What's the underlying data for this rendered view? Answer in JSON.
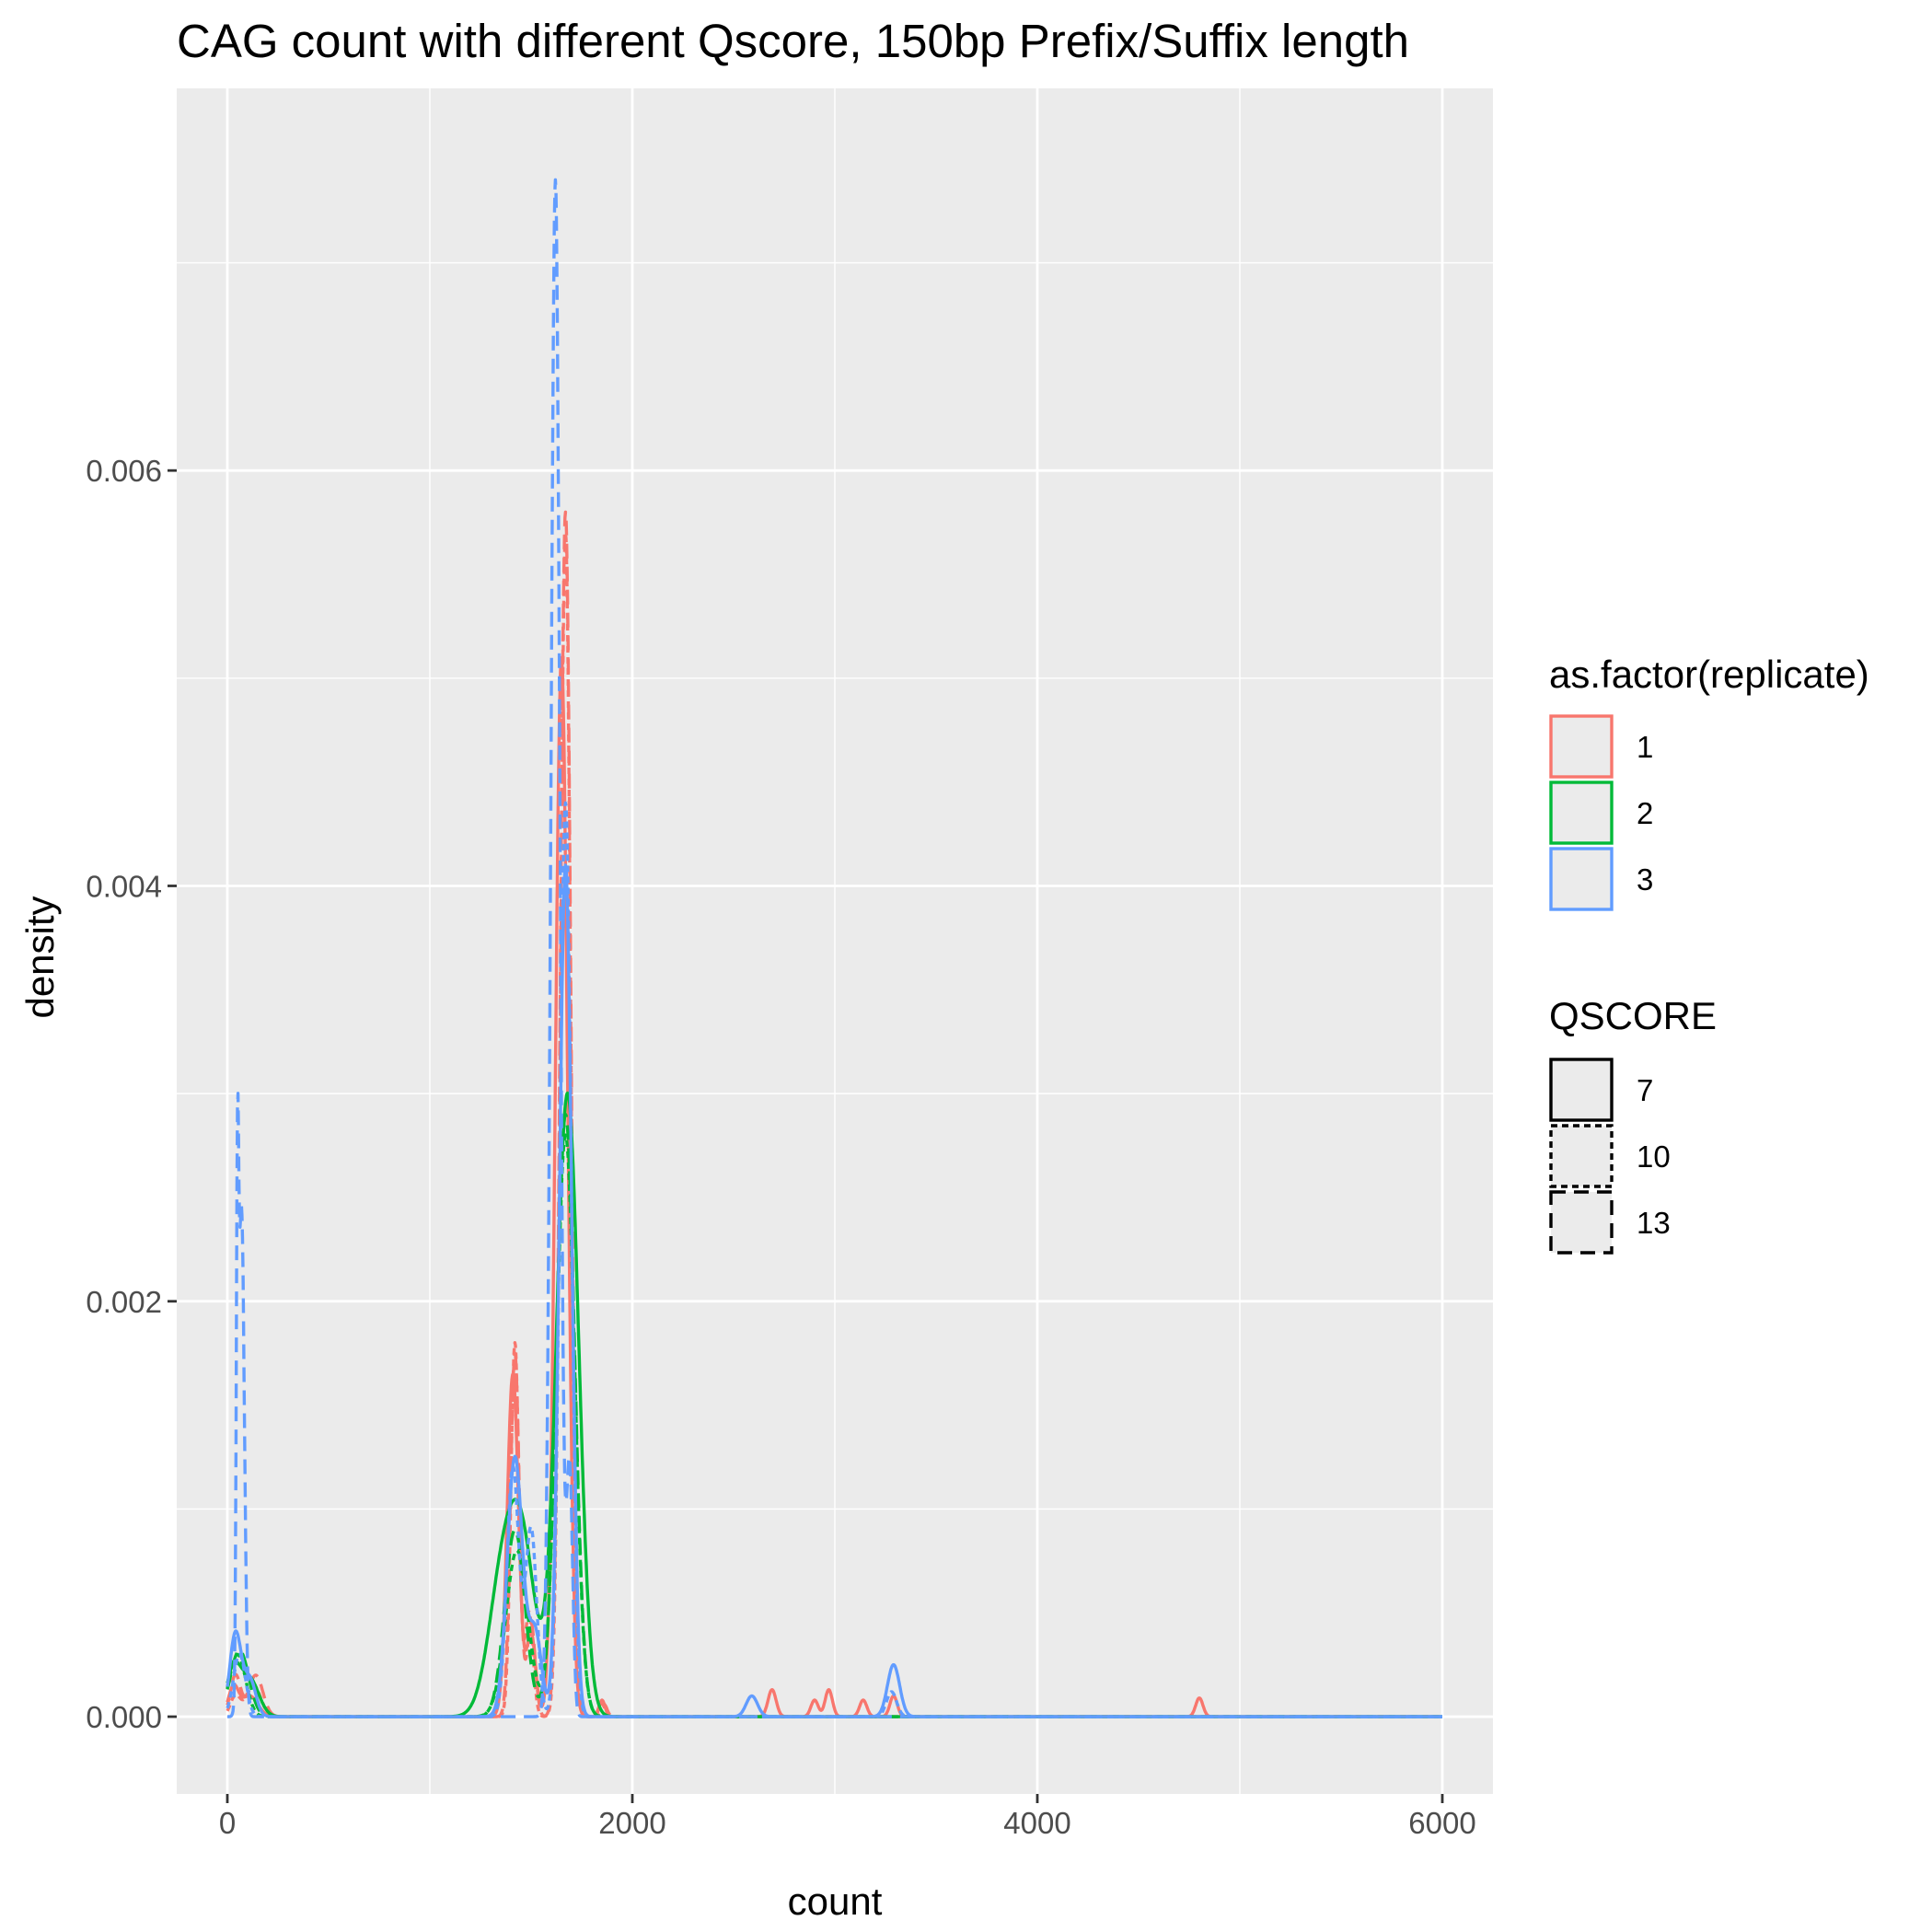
{
  "chart_data": {
    "type": "line",
    "title": "CAG count with different Qscore, 150bp Prefix/Suffix length",
    "xlabel": "count",
    "ylabel": "density",
    "xlim": [
      -250,
      6250
    ],
    "ylim": [
      -0.000372,
      0.00784
    ],
    "x_ticks": [
      0,
      2000,
      4000,
      6000
    ],
    "x_tick_labels": [
      "0",
      "2000",
      "4000",
      "6000"
    ],
    "y_ticks": [
      0,
      0.002,
      0.004,
      0.006
    ],
    "y_tick_labels": [
      "0.000",
      "0.002",
      "0.004",
      "0.006"
    ],
    "grid": true,
    "legend_position": "right",
    "legends": [
      {
        "title": "as.factor(replicate)",
        "aesthetic": "colour",
        "entries": [
          {
            "label": "1",
            "color": "#F8766D"
          },
          {
            "label": "2",
            "color": "#00BA38"
          },
          {
            "label": "3",
            "color": "#619CFF"
          }
        ]
      },
      {
        "title": "QSCORE",
        "aesthetic": "linetype",
        "entries": [
          {
            "label": "7",
            "linetype": "solid"
          },
          {
            "label": "10",
            "linetype": "dotted"
          },
          {
            "label": "13",
            "linetype": "dashed"
          }
        ]
      }
    ],
    "series": [
      {
        "replicate": "1",
        "qscore": "7",
        "color": "#F8766D",
        "linetype": "solid",
        "peaks": [
          [
            30,
            0.00014,
            25
          ],
          [
            110,
            0.0001,
            40
          ],
          [
            1410,
            0.00165,
            28
          ],
          [
            1500,
            0.0004,
            22
          ],
          [
            1650,
            0.0051,
            30
          ],
          [
            1850,
            8e-05,
            15
          ],
          [
            2690,
            0.00013,
            20
          ],
          [
            2900,
            8e-05,
            18
          ],
          [
            2970,
            0.00013,
            18
          ],
          [
            3140,
            8e-05,
            18
          ],
          [
            3290,
            0.0001,
            18
          ],
          [
            4800,
            9e-05,
            18
          ]
        ]
      },
      {
        "replicate": "1",
        "qscore": "10",
        "color": "#F8766D",
        "linetype": "dotted",
        "peaks": [
          [
            40,
            0.0001,
            25
          ],
          [
            130,
            0.00015,
            35
          ],
          [
            1420,
            0.0018,
            20
          ],
          [
            1490,
            0.0005,
            20
          ],
          [
            1670,
            0.0057,
            25
          ],
          [
            1850,
            6e-05,
            15
          ]
        ]
      },
      {
        "replicate": "1",
        "qscore": "13",
        "color": "#F8766D",
        "linetype": "dashed",
        "peaks": [
          [
            40,
            0.0002,
            25
          ],
          [
            140,
            0.0002,
            35
          ],
          [
            1420,
            0.00175,
            22
          ],
          [
            1500,
            0.00045,
            20
          ],
          [
            1670,
            0.0058,
            26
          ],
          [
            1860,
            6e-05,
            15
          ]
        ]
      },
      {
        "replicate": "2",
        "qscore": "7",
        "color": "#00BA38",
        "linetype": "solid",
        "peaks": [
          [
            30,
            0.00022,
            35
          ],
          [
            110,
            0.00018,
            45
          ],
          [
            1360,
            0.00065,
            70
          ],
          [
            1460,
            0.00072,
            65
          ],
          [
            1680,
            0.003,
            55
          ]
        ]
      },
      {
        "replicate": "2",
        "qscore": "10",
        "color": "#00BA38",
        "linetype": "dotted",
        "peaks": [
          [
            50,
            0.0003,
            40
          ],
          [
            1430,
            0.0008,
            55
          ],
          [
            1670,
            0.0028,
            45
          ]
        ]
      },
      {
        "replicate": "2",
        "qscore": "13",
        "color": "#00BA38",
        "linetype": "dashed",
        "peaks": [
          [
            60,
            0.00032,
            45
          ],
          [
            1420,
            0.0009,
            50
          ],
          [
            1670,
            0.0029,
            45
          ]
        ]
      },
      {
        "replicate": "3",
        "qscore": "7",
        "color": "#619CFF",
        "linetype": "solid",
        "peaks": [
          [
            40,
            0.0004,
            28
          ],
          [
            110,
            0.00018,
            30
          ],
          [
            1420,
            0.00125,
            38
          ],
          [
            1520,
            0.0004,
            32
          ],
          [
            1670,
            0.0041,
            30
          ],
          [
            2590,
            0.0001,
            28
          ],
          [
            3290,
            0.00025,
            30
          ]
        ]
      },
      {
        "replicate": "3",
        "qscore": "10",
        "color": "#619CFF",
        "linetype": "dotted",
        "peaks": [
          [
            60,
            0.0003,
            30
          ],
          [
            1410,
            0.0012,
            30
          ],
          [
            1500,
            0.0009,
            28
          ],
          [
            1670,
            0.0044,
            28
          ],
          [
            3280,
            0.00012,
            25
          ]
        ]
      },
      {
        "replicate": "3",
        "qscore": "13",
        "color": "#619CFF",
        "linetype": "dashed",
        "peaks": [
          [
            50,
            0.00205,
            6
          ],
          [
            70,
            0.00245,
            14
          ],
          [
            1620,
            0.0074,
            22
          ],
          [
            1690,
            0.0012,
            15
          ]
        ]
      }
    ]
  }
}
